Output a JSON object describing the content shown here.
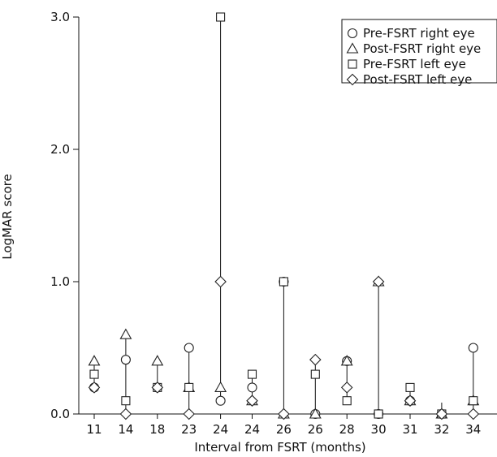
{
  "chart_data": {
    "type": "scatter",
    "title": "",
    "xlabel": "Interval from FSRT (months)",
    "ylabel": "LogMAR score",
    "ylim": [
      0,
      3.0
    ],
    "yticks": [
      "0.0",
      "1.0",
      "2.0",
      "3.0"
    ],
    "categories": [
      "11",
      "14",
      "18",
      "23",
      "24",
      "24",
      "26",
      "26",
      "28",
      "30",
      "31",
      "32",
      "34"
    ],
    "legend_position": "top-right",
    "series": [
      {
        "name": "Pre-FSRT right eye",
        "marker": "circle",
        "values": [
          0.2,
          0.41,
          0.2,
          0.5,
          0.1,
          0.2,
          1.0,
          0.0,
          0.4,
          0.0,
          0.1,
          0.0,
          0.5
        ]
      },
      {
        "name": "Post-FSRT right eye",
        "marker": "triangle",
        "values": [
          0.4,
          0.6,
          0.4,
          0.2,
          0.2,
          0.1,
          0.0,
          0.0,
          0.4,
          1.0,
          0.1,
          0.0,
          0.1
        ]
      },
      {
        "name": "Pre-FSRT left eye",
        "marker": "square",
        "values": [
          0.3,
          0.1,
          0.2,
          0.2,
          3.0,
          0.3,
          1.0,
          0.3,
          0.1,
          0.0,
          0.2,
          0.0,
          0.1
        ]
      },
      {
        "name": "Post-FSRT left eye",
        "marker": "diamond",
        "values": [
          0.2,
          0.0,
          0.2,
          0.0,
          1.0,
          0.1,
          0.0,
          0.41,
          0.2,
          1.0,
          0.1,
          0.0,
          0.0
        ]
      }
    ]
  }
}
